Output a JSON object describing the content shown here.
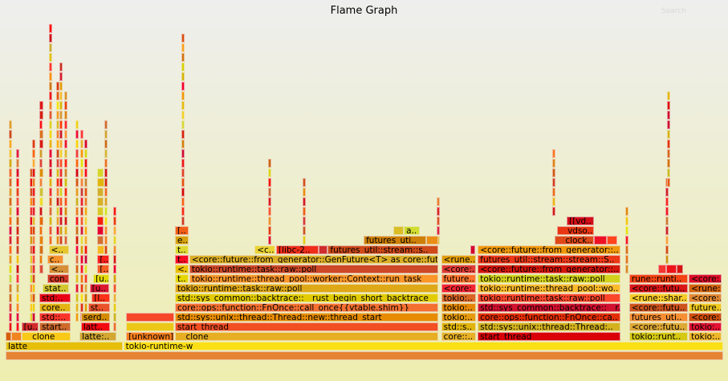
{
  "header": {
    "title": "Flame Graph",
    "search_label": "Search"
  },
  "total_samples": 1000,
  "frames": [
    {
      "label": "",
      "depth": 0,
      "start": 0,
      "samples": 1000
    },
    {
      "label": "latte",
      "depth": 1,
      "start": 0,
      "samples": 163
    },
    {
      "label": "tokio-runtime-w",
      "depth": 1,
      "start": 164,
      "samples": 836
    },
    {
      "label": "",
      "depth": 2,
      "start": 0,
      "samples": 8
    },
    {
      "label": "",
      "depth": 2,
      "start": 8,
      "samples": 14
    },
    {
      "label": "__clone",
      "depth": 2,
      "start": 22,
      "samples": 69
    },
    {
      "label": "latte:..",
      "depth": 2,
      "start": 103,
      "samples": 51
    },
    {
      "label": "[unknown]",
      "depth": 2,
      "start": 168,
      "samples": 67
    },
    {
      "label": "__clone",
      "depth": 2,
      "start": 236,
      "samples": 367
    },
    {
      "label": "core::..",
      "depth": 2,
      "start": 607,
      "samples": 49
    },
    {
      "label": "start_thread",
      "depth": 2,
      "start": 658,
      "samples": 199
    },
    {
      "label": "tokio::runt..",
      "depth": 2,
      "start": 869,
      "samples": 82
    },
    {
      "label": "tokio:..",
      "depth": 2,
      "start": 952,
      "samples": 46
    },
    {
      "label": "[u..",
      "depth": 3,
      "start": 22,
      "samples": 24
    },
    {
      "label": "start..",
      "depth": 3,
      "start": 47,
      "samples": 44
    },
    {
      "label": "latt..",
      "depth": 3,
      "start": 105,
      "samples": 40
    },
    {
      "label": "start_thread",
      "depth": 3,
      "start": 236,
      "samples": 367
    },
    {
      "label": "std::s..",
      "depth": 3,
      "start": 607,
      "samples": 49
    },
    {
      "label": "std::sys::unix::thread::Thread:..",
      "depth": 3,
      "start": 658,
      "samples": 199
    },
    {
      "label": "<core::futu..",
      "depth": 3,
      "start": 869,
      "samples": 82
    },
    {
      "label": "tokio:..",
      "depth": 3,
      "start": 952,
      "samples": 46
    },
    {
      "label": "std::..",
      "depth": 4,
      "start": 47,
      "samples": 44
    },
    {
      "label": "serd..",
      "depth": 4,
      "start": 105,
      "samples": 40
    },
    {
      "label": "std::sys::unix::thread::Thread::new::thread_start",
      "depth": 4,
      "start": 236,
      "samples": 367
    },
    {
      "label": "tokio:..",
      "depth": 4,
      "start": 607,
      "samples": 49
    },
    {
      "label": "core::ops::function::FnOnce::ca..",
      "depth": 4,
      "start": 658,
      "samples": 199
    },
    {
      "label": "futures_uti..",
      "depth": 4,
      "start": 869,
      "samples": 82
    },
    {
      "label": "<core:..",
      "depth": 4,
      "start": 952,
      "samples": 46
    },
    {
      "label": "core..",
      "depth": 5,
      "start": 47,
      "samples": 44
    },
    {
      "label": "st..",
      "depth": 5,
      "start": 115,
      "samples": 30
    },
    {
      "label": "core::ops::function::FnOnce::call_once{{vtable.shim}}",
      "depth": 5,
      "start": 236,
      "samples": 367
    },
    {
      "label": "tokio:..",
      "depth": 5,
      "start": 607,
      "samples": 49
    },
    {
      "label": "std::sys_common::backtrace::__r..",
      "depth": 5,
      "start": 658,
      "samples": 199
    },
    {
      "label": "<core::futu..",
      "depth": 5,
      "start": 869,
      "samples": 82
    },
    {
      "label": "future..",
      "depth": 5,
      "start": 952,
      "samples": 46
    },
    {
      "label": "std:..",
      "depth": 6,
      "start": 47,
      "samples": 44
    },
    {
      "label": "[l..",
      "depth": 6,
      "start": 120,
      "samples": 25
    },
    {
      "label": "std::sys_common::backtrace::__rust_begin_short_backtrace",
      "depth": 6,
      "start": 236,
      "samples": 367
    },
    {
      "label": "tokio:..",
      "depth": 6,
      "start": 607,
      "samples": 49
    },
    {
      "label": "tokio::runtime::task::raw::poll",
      "depth": 6,
      "start": 658,
      "samples": 199
    },
    {
      "label": "<rune::shar..",
      "depth": 6,
      "start": 869,
      "samples": 82
    },
    {
      "label": "<core:..",
      "depth": 6,
      "start": 952,
      "samples": 46
    },
    {
      "label": "stat..",
      "depth": 7,
      "start": 51,
      "samples": 37
    },
    {
      "label": "[u..",
      "depth": 7,
      "start": 117,
      "samples": 27
    },
    {
      "label": "tokio::runtime::task::raw::poll",
      "depth": 7,
      "start": 236,
      "samples": 367
    },
    {
      "label": "<core:..",
      "depth": 7,
      "start": 607,
      "samples": 49
    },
    {
      "label": "tokio::runtime::thread_pool::wo..",
      "depth": 7,
      "start": 658,
      "samples": 199
    },
    {
      "label": "<core::futu..",
      "depth": 7,
      "start": 869,
      "samples": 82
    },
    {
      "label": "<rune:..",
      "depth": 7,
      "start": 952,
      "samples": 46
    },
    {
      "label": "con..",
      "depth": 8,
      "start": 58,
      "samples": 30
    },
    {
      "label": "[u..",
      "depth": 8,
      "start": 122,
      "samples": 22
    },
    {
      "label": "t..",
      "depth": 8,
      "start": 236,
      "samples": 19
    },
    {
      "label": "tokio::runtime::thread_pool::worker::Context::run_task",
      "depth": 8,
      "start": 256,
      "samples": 347
    },
    {
      "label": "future..",
      "depth": 8,
      "start": 607,
      "samples": 49
    },
    {
      "label": "tokio::runtime::task::raw::poll",
      "depth": 8,
      "start": 658,
      "samples": 199
    },
    {
      "label": "rune::runti..",
      "depth": 8,
      "start": 869,
      "samples": 82
    },
    {
      "label": "<core:..",
      "depth": 8,
      "start": 952,
      "samples": 46
    },
    {
      "label": "<..",
      "depth": 9,
      "start": 60,
      "samples": 28
    },
    {
      "label": "[..",
      "depth": 9,
      "start": 128,
      "samples": 16
    },
    {
      "label": "<..",
      "depth": 9,
      "start": 236,
      "samples": 19
    },
    {
      "label": "tokio::runtime::task::raw::poll",
      "depth": 9,
      "start": 256,
      "samples": 347
    },
    {
      "label": "<core:..",
      "depth": 9,
      "start": 607,
      "samples": 49
    },
    {
      "label": "<core::future::from_generator::..",
      "depth": 9,
      "start": 658,
      "samples": 199
    },
    {
      "label": "",
      "depth": 9,
      "start": 909,
      "samples": 12
    },
    {
      "label": "",
      "depth": 9,
      "start": 921,
      "samples": 14
    },
    {
      "label": "",
      "depth": 9,
      "start": 935,
      "samples": 9
    },
    {
      "label": "c..",
      "depth": 10,
      "start": 58,
      "samples": 23
    },
    {
      "label": "[..",
      "depth": 10,
      "start": 128,
      "samples": 16
    },
    {
      "label": "t..",
      "depth": 10,
      "start": 236,
      "samples": 19
    },
    {
      "label": "<core::future::from_generator::GenFuture<T> as core::fut..",
      "depth": 10,
      "start": 256,
      "samples": 347
    },
    {
      "label": "<rune..",
      "depth": 10,
      "start": 607,
      "samples": 49
    },
    {
      "label": "futures_util::stream::stream::S..",
      "depth": 10,
      "start": 658,
      "samples": 199
    },
    {
      "label": "<..",
      "depth": 11,
      "start": 60,
      "samples": 28
    },
    {
      "label": "t..",
      "depth": 11,
      "start": 236,
      "samples": 19
    },
    {
      "label": "<c..",
      "depth": 11,
      "start": 347,
      "samples": 29
    },
    {
      "label": "[libc-2..",
      "depth": 11,
      "start": 377,
      "samples": 59
    },
    {
      "label": "",
      "depth": 11,
      "start": 436,
      "samples": 13
    },
    {
      "label": "futures_util::stream::s..",
      "depth": 11,
      "start": 449,
      "samples": 154
    },
    {
      "label": "",
      "depth": 11,
      "start": 648,
      "samples": 6
    },
    {
      "label": "<core::future::from_generator::..",
      "depth": 11,
      "start": 658,
      "samples": 199
    },
    {
      "label": "e..",
      "depth": 12,
      "start": 236,
      "samples": 19
    },
    {
      "label": "futures_uti..",
      "depth": 12,
      "start": 499,
      "samples": 87
    },
    {
      "label": "",
      "depth": 12,
      "start": 586,
      "samples": 17
    },
    {
      "label": "__clock..",
      "depth": 12,
      "start": 765,
      "samples": 55
    },
    {
      "label": "",
      "depth": 12,
      "start": 820,
      "samples": 18
    },
    {
      "label": "",
      "depth": 12,
      "start": 838,
      "samples": 14
    },
    {
      "label": "[..",
      "depth": 13,
      "start": 236,
      "samples": 19
    },
    {
      "label": "",
      "depth": 13,
      "start": 540,
      "samples": 15
    },
    {
      "label": "a..",
      "depth": 13,
      "start": 555,
      "samples": 22
    },
    {
      "label": "__vdso..",
      "depth": 13,
      "start": 768,
      "samples": 52
    },
    {
      "label": "[[vd..",
      "depth": 14,
      "start": 782,
      "samples": 38
    }
  ],
  "towers": [
    {
      "start": 4,
      "samples": 3,
      "base": 3,
      "top": 24
    },
    {
      "start": 14,
      "samples": 2,
      "base": 3,
      "top": 21
    },
    {
      "start": 33,
      "samples": 4,
      "base": 4,
      "top": 19
    },
    {
      "start": 37,
      "samples": 3,
      "base": 4,
      "top": 22
    },
    {
      "start": 47,
      "samples": 6,
      "base": 9,
      "top": 26
    },
    {
      "start": 60,
      "samples": 4,
      "base": 12,
      "top": 34
    },
    {
      "start": 70,
      "samples": 3,
      "base": 12,
      "top": 28
    },
    {
      "start": 75,
      "samples": 3,
      "base": 12,
      "top": 30
    },
    {
      "start": 82,
      "samples": 4,
      "base": 12,
      "top": 27
    },
    {
      "start": 97,
      "samples": 3,
      "base": 4,
      "top": 24
    },
    {
      "start": 104,
      "samples": 3,
      "base": 4,
      "top": 23
    },
    {
      "start": 110,
      "samples": 2,
      "base": 4,
      "top": 22
    },
    {
      "start": 128,
      "samples": 10,
      "base": 11,
      "top": 19
    },
    {
      "start": 138,
      "samples": 4,
      "base": 4,
      "top": 24
    },
    {
      "start": 150,
      "samples": 3,
      "base": 3,
      "top": 15
    },
    {
      "start": 168,
      "samples": 67,
      "base": 3,
      "top": 4
    },
    {
      "start": 245,
      "samples": 4,
      "base": 14,
      "top": 33
    },
    {
      "start": 366,
      "samples": 2,
      "base": 12,
      "top": 20
    },
    {
      "start": 414,
      "samples": 2,
      "base": 12,
      "top": 18
    },
    {
      "start": 601,
      "samples": 3,
      "base": 12,
      "top": 16
    },
    {
      "start": 762,
      "samples": 3,
      "base": 15,
      "top": 21
    },
    {
      "start": 864,
      "samples": 2,
      "base": 9,
      "top": 15
    },
    {
      "start": 920,
      "samples": 3,
      "base": 10,
      "top": 18
    },
    {
      "start": 922,
      "samples": 2,
      "base": 18,
      "top": 27
    }
  ]
}
